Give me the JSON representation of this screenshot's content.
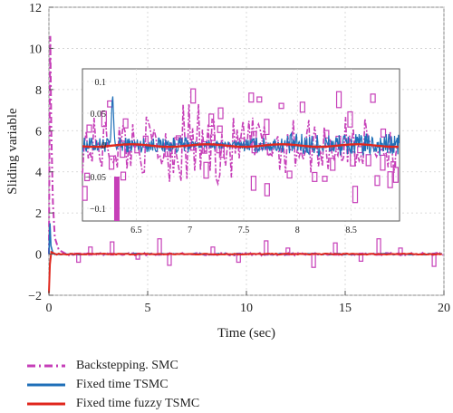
{
  "chart_data": {
    "type": "line",
    "xlabel": "Time (sec)",
    "ylabel": "Sliding variable",
    "xlim": [
      0,
      20
    ],
    "ylim": [
      -2,
      12
    ],
    "x_ticks": [
      "0",
      "5",
      "10",
      "15",
      "20"
    ],
    "y_ticks": [
      "−2",
      "0",
      "2",
      "4",
      "6",
      "8",
      "10",
      "12"
    ],
    "grid": true,
    "series": [
      {
        "name": "Backstepping. SMC",
        "color": "#c63fb8",
        "style": "dash-dot",
        "points": [
          [
            0,
            0
          ],
          [
            0.03,
            6
          ],
          [
            0.07,
            10.6
          ],
          [
            0.12,
            6
          ],
          [
            0.2,
            2.5
          ],
          [
            0.3,
            0.8
          ],
          [
            0.5,
            0.2
          ],
          [
            1,
            0.05
          ],
          [
            20,
            0.02
          ]
        ],
        "spikes": [
          [
            1.5,
            -0.35
          ],
          [
            2.1,
            0.3
          ],
          [
            3.2,
            0.55
          ],
          [
            4.5,
            -0.2
          ],
          [
            5.6,
            0.7
          ],
          [
            6.1,
            -0.5
          ],
          [
            8.3,
            0.3
          ],
          [
            9.6,
            -0.35
          ],
          [
            11.0,
            0.6
          ],
          [
            12.1,
            0.25
          ],
          [
            13.4,
            -0.6
          ],
          [
            14.5,
            0.5
          ],
          [
            15.8,
            -0.3
          ],
          [
            16.7,
            0.7
          ],
          [
            17.8,
            0.25
          ],
          [
            19.5,
            -0.55
          ]
        ]
      },
      {
        "name": "Fixed time TSMC",
        "color": "#1f6fb8",
        "style": "solid",
        "points": [
          [
            0,
            0
          ],
          [
            0.05,
            1.5
          ],
          [
            0.1,
            0.4
          ],
          [
            0.2,
            0.05
          ],
          [
            20,
            0.0
          ]
        ]
      },
      {
        "name": "Fixed time fuzzy TSMC",
        "color": "#e0271d",
        "style": "solid",
        "points": [
          [
            0,
            -1.9
          ],
          [
            0.05,
            -0.5
          ],
          [
            0.12,
            0.1
          ],
          [
            0.3,
            0.02
          ],
          [
            20,
            0.0
          ]
        ]
      }
    ],
    "inset": {
      "xlim": [
        6.0,
        8.95
      ],
      "ylim": [
        -0.12,
        0.12
      ],
      "x_ticks": [
        "6.5",
        "7",
        "7.5",
        "8",
        "8.5"
      ],
      "y_ticks": [
        "0.1",
        "0.05",
        "0",
        "−0.05",
        "−0.1"
      ]
    }
  }
}
